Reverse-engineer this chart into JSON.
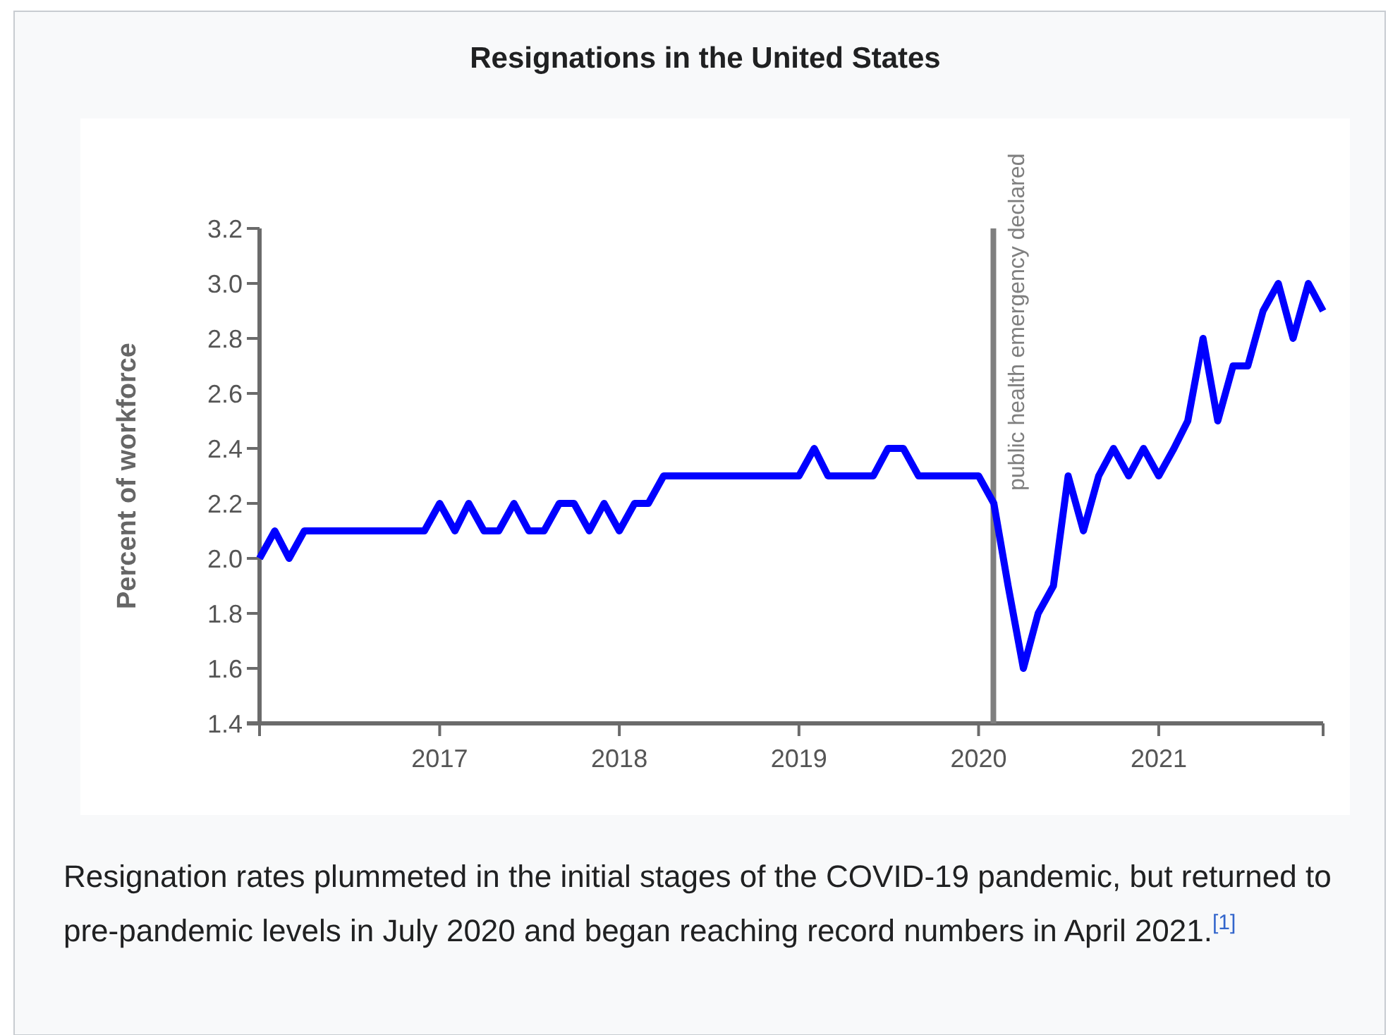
{
  "chart_data": {
    "type": "line",
    "title": "Resignations in the United States",
    "ylabel": "Percent of workforce",
    "x": [
      "2016-01",
      "2016-02",
      "2016-03",
      "2016-04",
      "2016-05",
      "2016-06",
      "2016-07",
      "2016-08",
      "2016-09",
      "2016-10",
      "2016-11",
      "2016-12",
      "2017-01",
      "2017-02",
      "2017-03",
      "2017-04",
      "2017-05",
      "2017-06",
      "2017-07",
      "2017-08",
      "2017-09",
      "2017-10",
      "2017-11",
      "2017-12",
      "2018-01",
      "2018-02",
      "2018-03",
      "2018-04",
      "2018-05",
      "2018-06",
      "2018-07",
      "2018-08",
      "2018-09",
      "2018-10",
      "2018-11",
      "2018-12",
      "2019-01",
      "2019-02",
      "2019-03",
      "2019-04",
      "2019-05",
      "2019-06",
      "2019-07",
      "2019-08",
      "2019-09",
      "2019-10",
      "2019-11",
      "2019-12",
      "2020-01",
      "2020-02",
      "2020-03",
      "2020-04",
      "2020-05",
      "2020-06",
      "2020-07",
      "2020-08",
      "2020-09",
      "2020-10",
      "2020-11",
      "2020-12",
      "2021-01",
      "2021-02",
      "2021-03",
      "2021-04",
      "2021-05",
      "2021-06",
      "2021-07",
      "2021-08",
      "2021-09",
      "2021-10",
      "2021-11",
      "2021-12"
    ],
    "series": [
      {
        "color": "#0000ff",
        "values": [
          2.0,
          2.1,
          2.0,
          2.1,
          2.1,
          2.1,
          2.1,
          2.1,
          2.1,
          2.1,
          2.1,
          2.1,
          2.2,
          2.1,
          2.2,
          2.1,
          2.1,
          2.2,
          2.1,
          2.1,
          2.2,
          2.2,
          2.1,
          2.2,
          2.1,
          2.2,
          2.2,
          2.3,
          2.3,
          2.3,
          2.3,
          2.3,
          2.3,
          2.3,
          2.3,
          2.3,
          2.3,
          2.4,
          2.3,
          2.3,
          2.3,
          2.3,
          2.4,
          2.4,
          2.3,
          2.3,
          2.3,
          2.3,
          2.3,
          2.2,
          1.9,
          1.6,
          1.8,
          1.9,
          2.3,
          2.1,
          2.3,
          2.4,
          2.3,
          2.4,
          2.3,
          2.4,
          2.5,
          2.8,
          2.5,
          2.7,
          2.7,
          2.9,
          3.0,
          2.8,
          3.0,
          2.9
        ]
      }
    ],
    "xlim": [
      "2016-01",
      "2021-12"
    ],
    "xticks": [
      {
        "value": "2016-01",
        "label": null
      },
      "2017",
      "2018",
      "2019",
      "2020",
      "2021",
      {
        "value": "2021-12",
        "label": null
      }
    ],
    "ylim": [
      1.4,
      3.2
    ],
    "yticks": [
      1.4,
      1.6,
      1.8,
      {
        "value": 2,
        "label": "2.0"
      },
      2.2,
      2.4,
      2.6,
      2.8,
      {
        "value": 3,
        "label": "3.0"
      },
      3.2
    ],
    "ref_lines": [
      {
        "axis": "x",
        "value": "2020-01-31",
        "label": "public health emergency declared",
        "color": "#7f7f7f"
      }
    ],
    "annotations": [
      "Resignation rates plummeted in the initial stages of the COVID-19 pandemic, but returned to pre-pandemic levels in July 2020 and began reaching record numbers in April 2021.$^{[1]}$"
    ]
  }
}
